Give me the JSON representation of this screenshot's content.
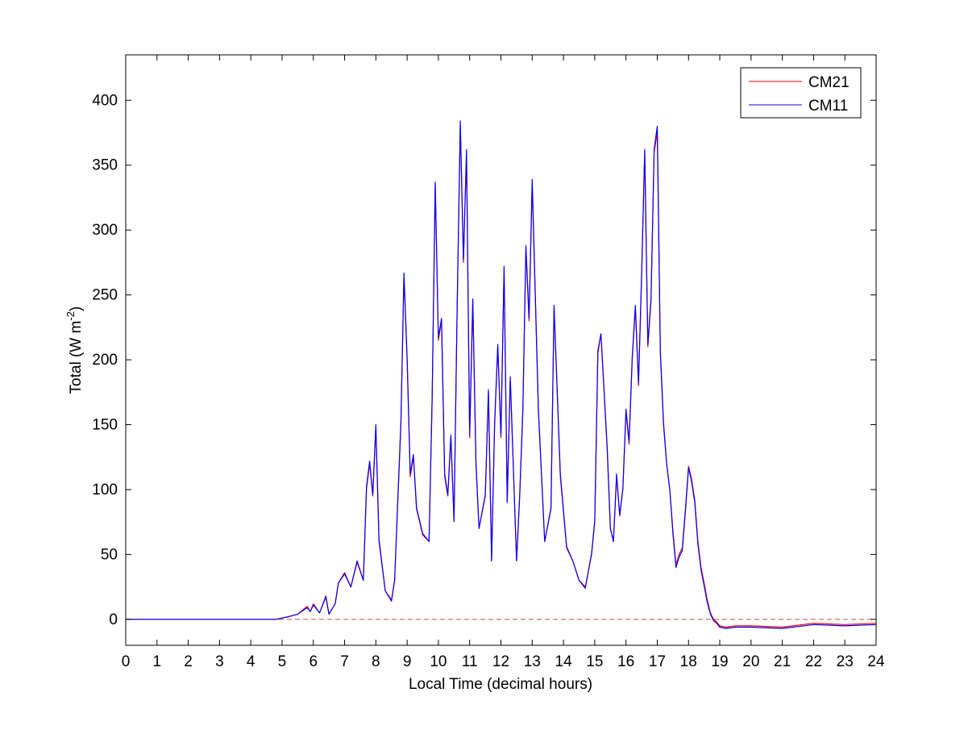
{
  "chart_data": {
    "type": "line",
    "title": "",
    "xlabel": "Local Time (decimal hours)",
    "ylabel": "Total (W m",
    "ylabel_superscript": "-2",
    "ylabel_close": ")",
    "xlim": [
      0,
      24
    ],
    "ylim": [
      -20,
      435
    ],
    "x_ticks": [
      0,
      1,
      2,
      3,
      4,
      5,
      6,
      7,
      8,
      9,
      10,
      11,
      12,
      13,
      14,
      15,
      16,
      17,
      18,
      19,
      20,
      21,
      22,
      23,
      24
    ],
    "x_tick_labels": [
      "0",
      "1",
      "2",
      "3",
      "4",
      "5",
      "6",
      "7",
      "8",
      "9",
      "10",
      "11",
      "12",
      "13",
      "14",
      "15",
      "16",
      "17",
      "18",
      "19",
      "20",
      "21",
      "22",
      "23",
      "24"
    ],
    "y_ticks": [
      0,
      50,
      100,
      150,
      200,
      250,
      300,
      350,
      400
    ],
    "y_tick_labels": [
      "0",
      "50",
      "100",
      "150",
      "200",
      "250",
      "300",
      "350",
      "400"
    ],
    "grid": false,
    "legend_position": "top-right",
    "reference_line": {
      "y": 0,
      "style": "dashed",
      "color": "#c0504d"
    },
    "series": [
      {
        "name": "CM21",
        "color": "#ff0000",
        "x": [
          0,
          4.8,
          5.2,
          5.5,
          5.8,
          5.9,
          6.0,
          6.2,
          6.4,
          6.5,
          6.6,
          6.7,
          6.8,
          7.0,
          7.2,
          7.4,
          7.6,
          7.7,
          7.8,
          7.9,
          8.0,
          8.1,
          8.3,
          8.5,
          8.6,
          8.8,
          8.9,
          9.0,
          9.1,
          9.2,
          9.3,
          9.5,
          9.7,
          9.8,
          9.9,
          10.0,
          10.1,
          10.2,
          10.3,
          10.4,
          10.5,
          10.6,
          10.7,
          10.8,
          10.9,
          11.0,
          11.1,
          11.2,
          11.3,
          11.5,
          11.6,
          11.7,
          11.8,
          11.9,
          12.0,
          12.1,
          12.2,
          12.3,
          12.5,
          12.6,
          12.7,
          12.8,
          12.9,
          13.0,
          13.2,
          13.4,
          13.6,
          13.7,
          13.9,
          14.1,
          14.3,
          14.5,
          14.7,
          14.9,
          15.0,
          15.1,
          15.2,
          15.4,
          15.5,
          15.6,
          15.7,
          15.8,
          15.9,
          16.0,
          16.1,
          16.2,
          16.3,
          16.4,
          16.5,
          16.6,
          16.7,
          16.8,
          16.9,
          17.0,
          17.1,
          17.2,
          17.3,
          17.4,
          17.5,
          17.6,
          17.7,
          17.8,
          17.9,
          18.0,
          18.1,
          18.2,
          18.3,
          18.4,
          18.5,
          18.6,
          18.7,
          18.8,
          18.9,
          19.0,
          19.2,
          19.5,
          20.0,
          21.0,
          22.0,
          23.0,
          24.0
        ],
        "y": [
          0,
          0,
          2,
          4,
          10,
          6,
          12,
          5,
          17,
          4,
          8,
          12,
          28,
          36,
          25,
          44,
          30,
          100,
          120,
          95,
          148,
          60,
          22,
          15,
          30,
          150,
          265,
          200,
          110,
          125,
          85,
          65,
          60,
          170,
          335,
          215,
          230,
          110,
          95,
          140,
          75,
          240,
          380,
          275,
          360,
          140,
          245,
          120,
          70,
          95,
          175,
          45,
          150,
          210,
          140,
          270,
          90,
          185,
          45,
          95,
          160,
          285,
          230,
          335,
          160,
          60,
          85,
          240,
          110,
          55,
          45,
          30,
          25,
          50,
          75,
          205,
          220,
          130,
          70,
          60,
          110,
          80,
          100,
          160,
          135,
          200,
          240,
          180,
          265,
          360,
          210,
          245,
          360,
          375,
          205,
          150,
          120,
          100,
          68,
          42,
          50,
          55,
          85,
          118,
          108,
          92,
          60,
          40,
          28,
          15,
          5,
          0,
          -2,
          -5,
          -6,
          -5,
          -5,
          -6,
          -3,
          -4,
          -3
        ]
      },
      {
        "name": "CM11",
        "color": "#0000ff",
        "x": [
          0,
          4.8,
          5.2,
          5.5,
          5.8,
          5.9,
          6.0,
          6.2,
          6.4,
          6.5,
          6.6,
          6.7,
          6.8,
          7.0,
          7.2,
          7.4,
          7.6,
          7.7,
          7.8,
          7.9,
          8.0,
          8.1,
          8.3,
          8.5,
          8.6,
          8.8,
          8.9,
          9.0,
          9.1,
          9.2,
          9.3,
          9.5,
          9.7,
          9.8,
          9.9,
          10.0,
          10.1,
          10.2,
          10.3,
          10.4,
          10.5,
          10.6,
          10.7,
          10.8,
          10.9,
          11.0,
          11.1,
          11.2,
          11.3,
          11.5,
          11.6,
          11.7,
          11.8,
          11.9,
          12.0,
          12.1,
          12.2,
          12.3,
          12.5,
          12.6,
          12.7,
          12.8,
          12.9,
          13.0,
          13.2,
          13.4,
          13.6,
          13.7,
          13.9,
          14.1,
          14.3,
          14.5,
          14.7,
          14.9,
          15.0,
          15.1,
          15.2,
          15.4,
          15.5,
          15.6,
          15.7,
          15.8,
          15.9,
          16.0,
          16.1,
          16.2,
          16.3,
          16.4,
          16.5,
          16.6,
          16.7,
          16.8,
          16.9,
          17.0,
          17.1,
          17.2,
          17.3,
          17.4,
          17.5,
          17.6,
          17.7,
          17.8,
          17.9,
          18.0,
          18.1,
          18.2,
          18.3,
          18.4,
          18.5,
          18.6,
          18.7,
          18.8,
          18.9,
          19.0,
          19.2,
          19.5,
          20.0,
          21.0,
          22.0,
          23.0,
          24.0
        ],
        "y": [
          0,
          0,
          2,
          4,
          9,
          6,
          11,
          5,
          18,
          4,
          8,
          12,
          28,
          35,
          25,
          45,
          30,
          102,
          122,
          96,
          150,
          62,
          22,
          14,
          30,
          152,
          267,
          202,
          112,
          127,
          86,
          66,
          60,
          172,
          337,
          217,
          232,
          112,
          96,
          142,
          76,
          242,
          384,
          277,
          362,
          142,
          247,
          122,
          70,
          96,
          177,
          45,
          152,
          212,
          142,
          272,
          90,
          187,
          45,
          96,
          162,
          288,
          232,
          339,
          162,
          60,
          86,
          242,
          112,
          56,
          45,
          30,
          24,
          51,
          76,
          207,
          220,
          132,
          70,
          60,
          112,
          80,
          101,
          162,
          137,
          202,
          242,
          182,
          267,
          362,
          212,
          247,
          362,
          380,
          207,
          152,
          120,
          100,
          66,
          40,
          48,
          53,
          83,
          117,
          106,
          90,
          58,
          38,
          26,
          13,
          4,
          -1,
          -3,
          -6,
          -7,
          -6,
          -6,
          -7,
          -4,
          -5,
          -4
        ]
      }
    ]
  }
}
